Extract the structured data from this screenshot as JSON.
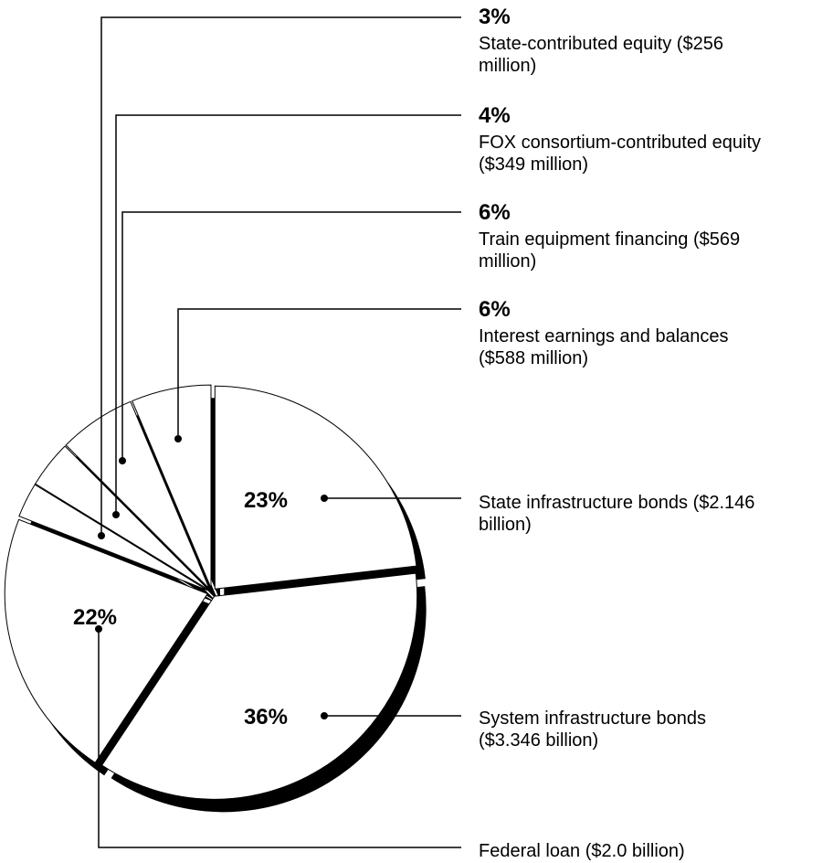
{
  "chart_data": {
    "type": "pie",
    "title": "",
    "slices": [
      {
        "percent": "23%",
        "label": "State infrastructure bonds ($2.146 billion)",
        "lines": [
          "State infrastructure bonds ($2.146",
          "billion)"
        ],
        "value_millions": 2146
      },
      {
        "percent": "36%",
        "label": "System infrastructure bonds ($3.346 billion)",
        "lines": [
          "System infrastructure bonds",
          "($3.346 billion)"
        ],
        "value_millions": 3346
      },
      {
        "percent": "22%",
        "label": "Federal loan ($2.0 billion)",
        "lines": [
          "Federal loan ($2.0 billion)"
        ],
        "value_millions": 2000
      },
      {
        "percent": "3%",
        "label": "State-contributed equity ($256 million)",
        "lines": [
          "State-contributed equity ($256",
          "million)"
        ],
        "value_millions": 256
      },
      {
        "percent": "4%",
        "label": "FOX consortium-contributed equity ($349 million)",
        "lines": [
          "FOX consortium-contributed equity",
          "($349 million)"
        ],
        "value_millions": 349
      },
      {
        "percent": "6%",
        "label": "Train equipment financing ($569 million)",
        "lines": [
          "Train equipment financing ($569",
          "million)"
        ],
        "value_millions": 569
      },
      {
        "percent": "6%",
        "label": "Interest earnings and balances ($588 million)",
        "lines": [
          "Interest earnings and balances",
          "($588 million)"
        ],
        "value_millions": 588
      }
    ],
    "legend": "none",
    "grid": false,
    "style": "exploded pie with drop shadow, callout lines"
  }
}
